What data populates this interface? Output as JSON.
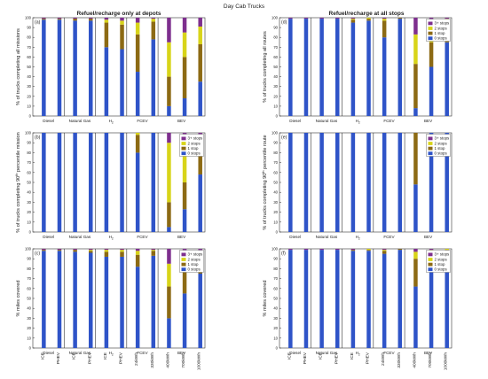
{
  "figure_title": "Day Cab Trucks",
  "column_titles": [
    "Refuel/recharge only at depots",
    "Refuel/recharge at all stops"
  ],
  "groups": [
    "Diesel",
    "Natural Gas",
    "H2",
    "FCEV",
    "BEV"
  ],
  "h2_label": {
    "base": "H",
    "sub": "2"
  },
  "vehicles": [
    "ICE",
    "PHEV",
    "ICE",
    "PHEV",
    "ICE",
    "PHEV",
    "24kWh",
    "330kWh",
    "400kWh",
    "700kWh",
    "1000kWh"
  ],
  "group_slots": [
    2,
    2,
    2,
    2,
    3
  ],
  "legend": [
    "3+ stops",
    "2 stops",
    "1 stop",
    "0 stops"
  ],
  "colors": {
    "3+ stops": "#7e2f8e",
    "2 stops": "#d8d41a",
    "1 stop": "#8c6a14",
    "0 stops": "#2f54c8"
  },
  "chart_data": [
    {
      "type": "bar",
      "panel": "(a)",
      "stacked": true,
      "column": "Refuel/recharge only at depots",
      "ylabel": "% of trucks completing all missions",
      "categories": [
        "ICE",
        "PHEV",
        "ICE",
        "PHEV",
        "ICE",
        "PHEV",
        "24kWh",
        "330kWh",
        "400kWh",
        "700kWh",
        "1000kWh"
      ],
      "ylim": [
        0,
        100
      ],
      "yticks": [
        0,
        10,
        20,
        30,
        40,
        50,
        60,
        70,
        80,
        90,
        100
      ],
      "legend_placement": "none",
      "series": [
        {
          "name": "0 stops",
          "values": [
            98,
            98,
            97,
            97,
            70,
            68,
            45,
            78,
            10,
            18,
            35
          ]
        },
        {
          "name": "1 stop",
          "values": [
            1,
            1,
            2,
            2,
            25,
            25,
            38,
            18,
            30,
            42,
            38
          ]
        },
        {
          "name": "2 stops",
          "values": [
            0,
            0,
            0,
            0,
            3,
            4,
            12,
            3,
            35,
            25,
            18
          ]
        },
        {
          "name": "3+ stops",
          "values": [
            1,
            1,
            1,
            1,
            2,
            3,
            5,
            1,
            25,
            15,
            9
          ]
        }
      ]
    },
    {
      "type": "bar",
      "panel": "(b)",
      "stacked": true,
      "column": "Refuel/recharge only at depots",
      "ylabel": {
        "pre": "% of trucks completing 90",
        "sup": "th",
        "post": " percentile mission"
      },
      "categories": [
        "ICE",
        "PHEV",
        "ICE",
        "PHEV",
        "ICE",
        "PHEV",
        "24kWh",
        "330kWh",
        "400kWh",
        "700kWh",
        "1000kWh"
      ],
      "ylim": [
        0,
        100
      ],
      "yticks": [
        0,
        10,
        20,
        30,
        40,
        50,
        60,
        70,
        80,
        90,
        100
      ],
      "legend_placement": "top-right",
      "series": [
        {
          "name": "0 stops",
          "values": [
            100,
            100,
            100,
            100,
            100,
            100,
            80,
            100,
            5,
            23,
            58
          ]
        },
        {
          "name": "1 stop",
          "values": [
            0,
            0,
            0,
            0,
            0,
            0,
            18,
            0,
            25,
            27,
            32
          ]
        },
        {
          "name": "2 stops",
          "values": [
            0,
            0,
            0,
            0,
            0,
            0,
            2,
            0,
            60,
            40,
            8
          ]
        },
        {
          "name": "3+ stops",
          "values": [
            0,
            0,
            0,
            0,
            0,
            0,
            0,
            0,
            10,
            10,
            2
          ]
        }
      ]
    },
    {
      "type": "bar",
      "panel": "(c)",
      "stacked": true,
      "column": "Refuel/recharge only at depots",
      "ylabel": "% miles covered",
      "categories": [
        "ICE",
        "PHEV",
        "ICE",
        "PHEV",
        "ICE",
        "PHEV",
        "24kWh",
        "330kWh",
        "400kWh",
        "700kWh",
        "1000kWh"
      ],
      "ylim": [
        0,
        100
      ],
      "yticks": [
        0,
        10,
        20,
        30,
        40,
        50,
        60,
        70,
        80,
        90,
        100
      ],
      "legend_placement": "top-right",
      "series": [
        {
          "name": "0 stops",
          "values": [
            98,
            98,
            97,
            96,
            92,
            92,
            82,
            93,
            30,
            55,
            75
          ]
        },
        {
          "name": "1 stop",
          "values": [
            1,
            1,
            2,
            2,
            5,
            5,
            12,
            5,
            32,
            30,
            18
          ]
        },
        {
          "name": "2 stops",
          "values": [
            0,
            0,
            0,
            1,
            2,
            2,
            4,
            1,
            23,
            10,
            5
          ]
        },
        {
          "name": "3+ stops",
          "values": [
            1,
            1,
            1,
            1,
            1,
            1,
            2,
            1,
            15,
            5,
            2
          ]
        }
      ]
    },
    {
      "type": "bar",
      "panel": "(d)",
      "stacked": true,
      "column": "Refuel/recharge at all stops",
      "ylabel": "% of trucks completing all routes",
      "categories": [
        "ICE",
        "PHEV",
        "ICE",
        "PHEV",
        "ICE",
        "PHEV",
        "24kWh",
        "330kWh",
        "400kWh",
        "700kWh",
        "1000kWh"
      ],
      "ylim": [
        0,
        100
      ],
      "yticks": [
        0,
        10,
        20,
        30,
        40,
        50,
        60,
        70,
        80,
        90,
        100
      ],
      "legend_placement": "top-right",
      "series": [
        {
          "name": "0 stops",
          "values": [
            99,
            99,
            99,
            99,
            95,
            97,
            80,
            99,
            8,
            50,
            75
          ]
        },
        {
          "name": "1 stop",
          "values": [
            0,
            0,
            0,
            0,
            3,
            2,
            17,
            1,
            45,
            25,
            20
          ]
        },
        {
          "name": "2 stops",
          "values": [
            0,
            0,
            0,
            0,
            1,
            1,
            2,
            0,
            30,
            20,
            4
          ]
        },
        {
          "name": "3+ stops",
          "values": [
            1,
            1,
            1,
            1,
            1,
            0,
            1,
            0,
            17,
            5,
            1
          ]
        }
      ]
    },
    {
      "type": "bar",
      "panel": "(e)",
      "stacked": true,
      "column": "Refuel/recharge at all stops",
      "ylabel": {
        "pre": "% of trucks completing 90",
        "sup": "th",
        "post": " percentile route"
      },
      "categories": [
        "ICE",
        "PHEV",
        "ICE",
        "PHEV",
        "ICE",
        "PHEV",
        "24kWh",
        "330kWh",
        "400kWh",
        "700kWh",
        "1000kWh"
      ],
      "ylim": [
        0,
        100
      ],
      "yticks": [
        0,
        10,
        20,
        30,
        40,
        50,
        60,
        70,
        80,
        90,
        100
      ],
      "legend_placement": "top-right",
      "series": [
        {
          "name": "0 stops",
          "values": [
            100,
            100,
            100,
            100,
            100,
            100,
            100,
            100,
            48,
            100,
            100
          ]
        },
        {
          "name": "1 stop",
          "values": [
            0,
            0,
            0,
            0,
            0,
            0,
            0,
            0,
            52,
            0,
            0
          ]
        },
        {
          "name": "2 stops",
          "values": [
            0,
            0,
            0,
            0,
            0,
            0,
            0,
            0,
            0,
            0,
            0
          ]
        },
        {
          "name": "3+ stops",
          "values": [
            0,
            0,
            0,
            0,
            0,
            0,
            0,
            0,
            0,
            0,
            0
          ]
        }
      ]
    },
    {
      "type": "bar",
      "panel": "(f)",
      "stacked": true,
      "column": "Refuel/recharge at all stops",
      "ylabel": "% miles covered",
      "categories": [
        "ICE",
        "PHEV",
        "ICE",
        "PHEV",
        "ICE",
        "PHEV",
        "24kWh",
        "330kWh",
        "400kWh",
        "700kWh",
        "1000kWh"
      ],
      "ylim": [
        0,
        100
      ],
      "yticks": [
        0,
        10,
        20,
        30,
        40,
        50,
        60,
        70,
        80,
        90,
        100
      ],
      "legend_placement": "top-right",
      "series": [
        {
          "name": "0 stops",
          "values": [
            99,
            99,
            99,
            99,
            98,
            98,
            95,
            99,
            62,
            88,
            95
          ]
        },
        {
          "name": "1 stop",
          "values": [
            0,
            0,
            0,
            0,
            1,
            1,
            3,
            1,
            28,
            8,
            4
          ]
        },
        {
          "name": "2 stops",
          "values": [
            0,
            0,
            0,
            0,
            0,
            1,
            1,
            0,
            7,
            3,
            1
          ]
        },
        {
          "name": "3+ stops",
          "values": [
            1,
            1,
            1,
            1,
            1,
            0,
            1,
            0,
            3,
            1,
            0
          ]
        }
      ]
    }
  ]
}
